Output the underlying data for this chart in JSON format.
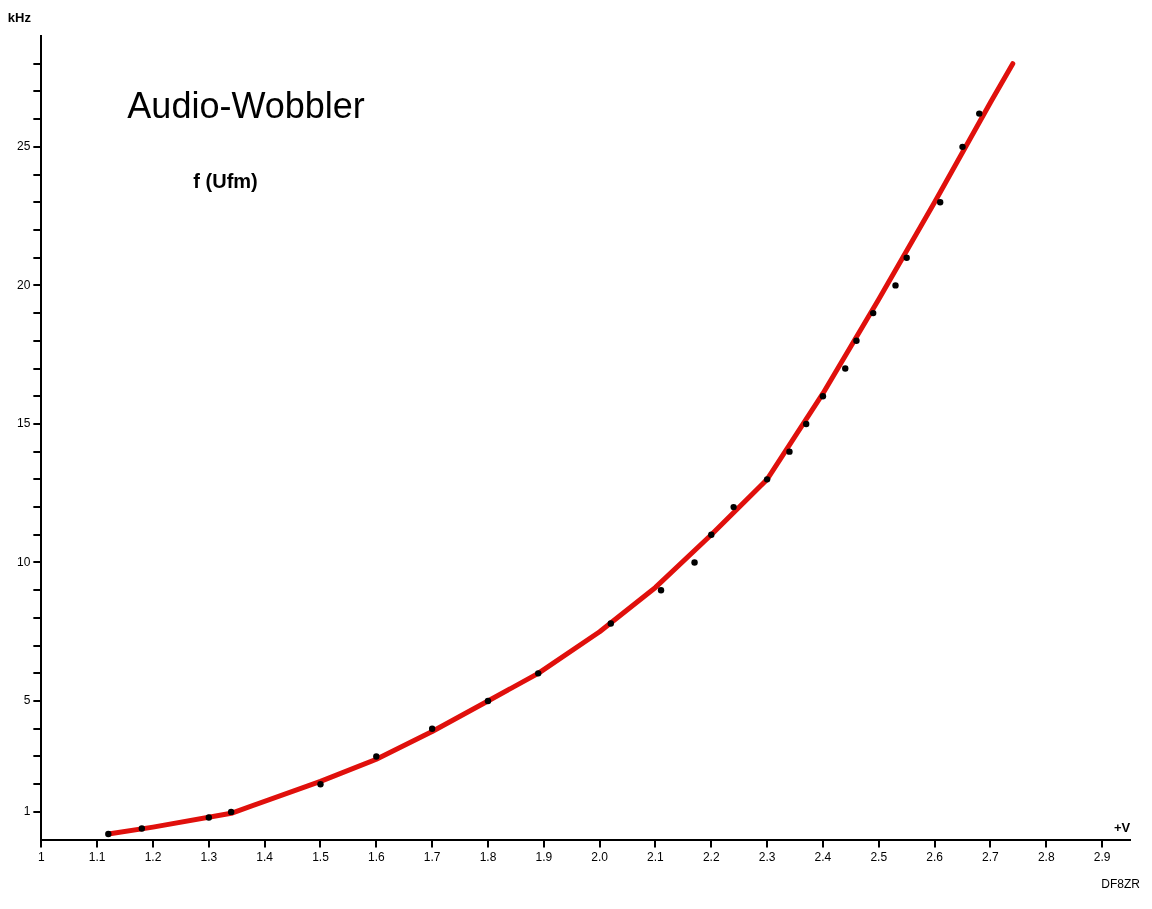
{
  "chart_data": {
    "type": "scatter",
    "title": "Audio-Wobbler",
    "xlabel": "+V",
    "ylabel": "kHz",
    "annotations": [
      "f (Ufm)",
      "DF8ZR"
    ],
    "xlim": [
      1,
      2.95
    ],
    "ylim": [
      0,
      29
    ],
    "xticks": [
      1,
      1.1,
      1.2,
      1.3,
      1.4,
      1.5,
      1.6,
      1.7,
      1.8,
      1.9,
      {
        "value": 2,
        "label": "2.0"
      },
      2.1,
      2.2,
      2.3,
      2.4,
      2.5,
      2.6,
      2.7,
      2.8,
      2.9
    ],
    "yticks": [
      1,
      {
        "value": 2,
        "label": null
      },
      {
        "value": 3,
        "label": null
      },
      {
        "value": 4,
        "label": null
      },
      5,
      {
        "value": 6,
        "label": null
      },
      {
        "value": 7,
        "label": null
      },
      {
        "value": 8,
        "label": null
      },
      {
        "value": 9,
        "label": null
      },
      10,
      {
        "value": 11,
        "label": null
      },
      {
        "value": 12,
        "label": null
      },
      {
        "value": 13,
        "label": null
      },
      {
        "value": 14,
        "label": null
      },
      15,
      {
        "value": 16,
        "label": null
      },
      {
        "value": 17,
        "label": null
      },
      {
        "value": 18,
        "label": null
      },
      {
        "value": 19,
        "label": null
      },
      20,
      {
        "value": 21,
        "label": null
      },
      {
        "value": 22,
        "label": null
      },
      {
        "value": 23,
        "label": null
      },
      {
        "value": 24,
        "label": null
      },
      25,
      {
        "value": 26,
        "label": null
      },
      {
        "value": 27,
        "label": null
      },
      {
        "value": 28,
        "label": null
      }
    ],
    "grid": false,
    "legend": false,
    "series": [
      {
        "type": "scatter",
        "color": "#000000",
        "marker": "circle",
        "x": [
          1.12,
          1.18,
          1.3,
          1.34,
          1.5,
          1.6,
          1.7,
          1.8,
          1.89,
          2.02,
          2.11,
          2.17,
          2.2,
          2.24,
          2.3,
          2.34,
          2.37,
          2.4,
          2.44,
          2.46,
          2.49,
          2.53,
          2.55,
          2.61,
          2.65,
          2.68
        ],
        "values": [
          0.2,
          0.4,
          0.8,
          1,
          2,
          3,
          4,
          5,
          6,
          7.8,
          9,
          10,
          11,
          12,
          13,
          14,
          15,
          16,
          17,
          18,
          19,
          20,
          21,
          23,
          25,
          26.2
        ]
      },
      {
        "type": "line",
        "color": "#e0100c",
        "marker": "none",
        "line_style": "solid",
        "x": [
          1.12,
          1.2,
          1.34,
          1.5,
          1.6,
          1.7,
          1.8,
          1.89,
          2.0,
          2.1,
          2.2,
          2.3,
          2.4,
          2.5,
          2.6,
          2.7,
          2.74
        ],
        "values": [
          0.2,
          0.45,
          0.95,
          2.1,
          2.9,
          3.9,
          5,
          6,
          7.5,
          9.1,
          11,
          13,
          16.1,
          19.5,
          23,
          26.6,
          28
        ]
      }
    ]
  }
}
